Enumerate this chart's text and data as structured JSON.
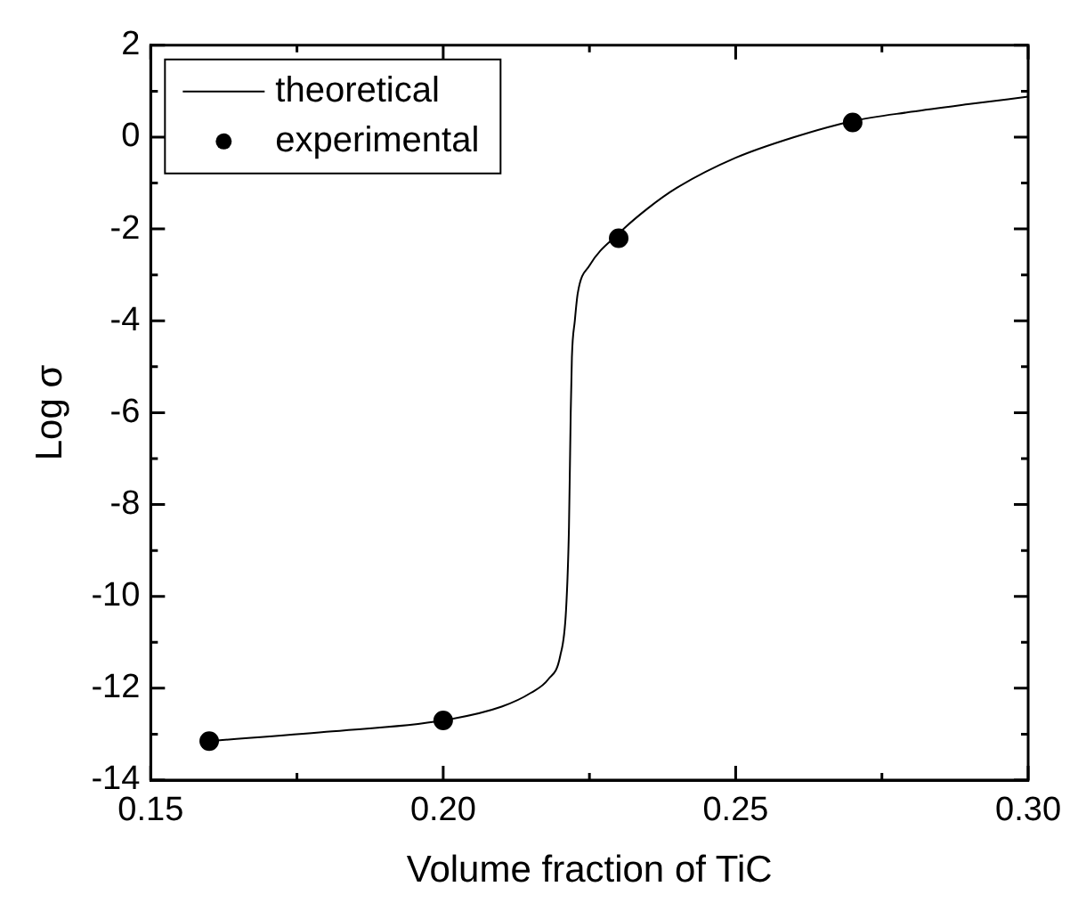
{
  "chart_data": {
    "type": "line",
    "xlabel": "Volume fraction of TiC",
    "ylabel": "Log σ",
    "xlim": [
      0.15,
      0.3
    ],
    "xticks": [
      0.15,
      {
        "value": 0.175,
        "label": null
      },
      {
        "value": 0.2,
        "label": "0.20"
      },
      {
        "value": 0.225,
        "label": null
      },
      0.25,
      {
        "value": 0.275,
        "label": null
      },
      {
        "value": 0.3,
        "label": "0.30"
      }
    ],
    "ylim": [
      -14,
      2
    ],
    "yticks": [
      -14,
      {
        "value": -13,
        "label": null
      },
      -12,
      {
        "value": -11,
        "label": null
      },
      -10,
      {
        "value": -9,
        "label": null
      },
      -8,
      {
        "value": -7,
        "label": null
      },
      -6,
      {
        "value": -5,
        "label": null
      },
      -4,
      {
        "value": -3,
        "label": null
      },
      -2,
      {
        "value": -1,
        "label": null
      },
      0,
      {
        "value": 1,
        "label": null
      },
      2
    ],
    "legend": "top left",
    "series": [
      {
        "name": "theoretical",
        "color": "#000000",
        "marker": "none",
        "line_style": "solid",
        "x": [
          0.16,
          0.18,
          0.2,
          0.21,
          0.215,
          0.218,
          0.22,
          0.221,
          0.2215,
          0.2218,
          0.222,
          0.2225,
          0.223,
          0.225,
          0.23,
          0.235,
          0.24,
          0.25,
          0.26,
          0.27,
          0.28,
          0.29,
          0.3
        ],
        "values": [
          -13.15,
          -12.95,
          -12.7,
          -12.4,
          -12.1,
          -11.8,
          -11.3,
          -10.3,
          -8.5,
          -6,
          -4.8,
          -4.0,
          -3.4,
          -2.8,
          -2.1,
          -1.55,
          -1.1,
          -0.45,
          0.0,
          0.35,
          0.55,
          0.72,
          0.88
        ]
      },
      {
        "name": "experimental",
        "type": "scatter",
        "color": "#000000",
        "marker": "circle",
        "x": [
          0.16,
          0.2,
          0.23,
          0.27
        ],
        "values": [
          -13.15,
          -12.7,
          -2.2,
          0.32
        ]
      }
    ]
  }
}
